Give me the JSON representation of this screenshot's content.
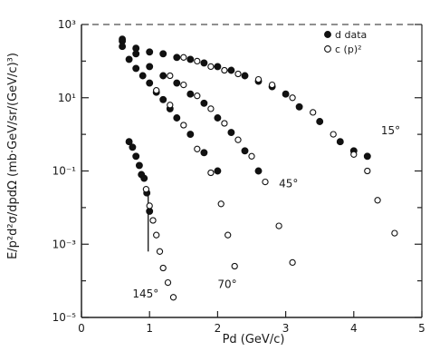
{
  "chart_data": {
    "type": "scatter",
    "title": "",
    "xlabel": "Pd   (GeV/c)",
    "ylabel": "E/p²d²σ/dpdΩ (mb·GeV/sr/(GeV/c)³)",
    "xlim": [
      0,
      5
    ],
    "ylim_log10": [
      -5,
      3
    ],
    "yscale": "log",
    "grid": false,
    "x_ticks": [
      {
        "value": 0,
        "label": "0"
      },
      {
        "value": 1,
        "label": "1"
      },
      {
        "value": 2,
        "label": "2"
      },
      {
        "value": 3,
        "label": "3"
      },
      {
        "value": 4,
        "label": "4"
      },
      {
        "value": 5,
        "label": "5"
      }
    ],
    "y_ticks": [
      {
        "exp": 3,
        "label": "10³"
      },
      {
        "exp": 1,
        "label": "10¹"
      },
      {
        "exp": -1,
        "label": "10⁻¹"
      },
      {
        "exp": -3,
        "label": "10⁻³"
      },
      {
        "exp": -5,
        "label": "10⁻⁵"
      }
    ],
    "legend": {
      "position": "top-right",
      "entries": [
        {
          "label": "d data",
          "marker": "filled-circle"
        },
        {
          "label": "c (p)²",
          "marker": "open-circle"
        }
      ]
    },
    "annotations": [
      {
        "text": "15°",
        "x": 4.4,
        "log10y": 0.0
      },
      {
        "text": "45°",
        "x": 2.9,
        "log10y": -1.45
      },
      {
        "text": "70°",
        "x": 2.0,
        "log10y": -4.2
      },
      {
        "text": "145°",
        "x": 0.75,
        "log10y": -4.45
      }
    ],
    "series": [
      {
        "name": "d data",
        "group": "15°",
        "marker": "filled",
        "x": [
          0.6,
          0.8,
          1.0,
          1.2,
          1.4,
          1.6,
          1.8,
          2.0,
          2.2,
          2.4,
          2.6,
          2.8,
          3.0,
          3.2,
          3.5,
          3.8,
          4.0,
          4.2
        ],
        "log10y": [
          2.55,
          2.35,
          2.25,
          2.2,
          2.1,
          2.05,
          1.95,
          1.85,
          1.75,
          1.6,
          1.45,
          1.3,
          1.1,
          0.75,
          0.35,
          -0.2,
          -0.45,
          -0.6
        ]
      },
      {
        "name": "c (p)²",
        "group": "15°",
        "marker": "open",
        "x": [
          1.5,
          1.7,
          1.9,
          2.1,
          2.3,
          2.6,
          2.8,
          3.1,
          3.4,
          3.7,
          4.0,
          4.2,
          4.35,
          4.6
        ],
        "log10y": [
          2.1,
          2.0,
          1.85,
          1.75,
          1.65,
          1.5,
          1.35,
          1.0,
          0.6,
          0.0,
          -0.55,
          -1.0,
          -1.8,
          -2.7
        ]
      },
      {
        "name": "d data",
        "group": "45°",
        "marker": "filled",
        "x": [
          0.6,
          0.8,
          1.0,
          1.2,
          1.4,
          1.6,
          1.8,
          2.0,
          2.2,
          2.4,
          2.6
        ],
        "log10y": [
          2.6,
          2.2,
          1.85,
          1.6,
          1.4,
          1.1,
          0.85,
          0.45,
          0.05,
          -0.45,
          -1.0
        ]
      },
      {
        "name": "c (p)²",
        "group": "45°",
        "marker": "open",
        "x": [
          1.3,
          1.5,
          1.7,
          1.9,
          2.1,
          2.3,
          2.5,
          2.7,
          2.9,
          3.1
        ],
        "log10y": [
          1.6,
          1.35,
          1.05,
          0.7,
          0.3,
          -0.15,
          -0.6,
          -1.3,
          -2.5,
          -3.5
        ]
      },
      {
        "name": "d data",
        "group": "70°",
        "marker": "filled",
        "x": [
          0.6,
          0.7,
          0.8,
          0.9,
          1.0,
          1.1,
          1.2,
          1.3,
          1.4,
          1.6,
          1.8,
          2.0
        ],
        "log10y": [
          2.4,
          2.05,
          1.8,
          1.6,
          1.4,
          1.15,
          0.95,
          0.7,
          0.45,
          0.0,
          -0.5,
          -1.0
        ]
      },
      {
        "name": "c (p)²",
        "group": "70°",
        "marker": "open",
        "x": [
          1.1,
          1.3,
          1.5,
          1.7,
          1.9,
          2.05,
          2.15,
          2.25
        ],
        "log10y": [
          1.2,
          0.8,
          0.25,
          -0.4,
          -1.05,
          -1.9,
          -2.75,
          -3.6
        ]
      },
      {
        "name": "d data",
        "group": "145°",
        "marker": "filled",
        "x": [
          0.7,
          0.75,
          0.8,
          0.85,
          0.88,
          0.92,
          0.96,
          1.0
        ],
        "log10y": [
          -0.2,
          -0.35,
          -0.6,
          -0.85,
          -1.1,
          -1.2,
          -1.6,
          -2.1
        ]
      },
      {
        "name": "c (p)²",
        "group": "145°",
        "marker": "open",
        "x": [
          0.95,
          1.0,
          1.05,
          1.1,
          1.15,
          1.2,
          1.27,
          1.35
        ],
        "log10y": [
          -1.5,
          -1.95,
          -2.35,
          -2.75,
          -3.2,
          -3.65,
          -4.05,
          -4.45
        ]
      }
    ],
    "error_bars": [
      {
        "x": 0.98,
        "log10y_low": -3.2,
        "log10y_high": -1.6
      }
    ]
  }
}
